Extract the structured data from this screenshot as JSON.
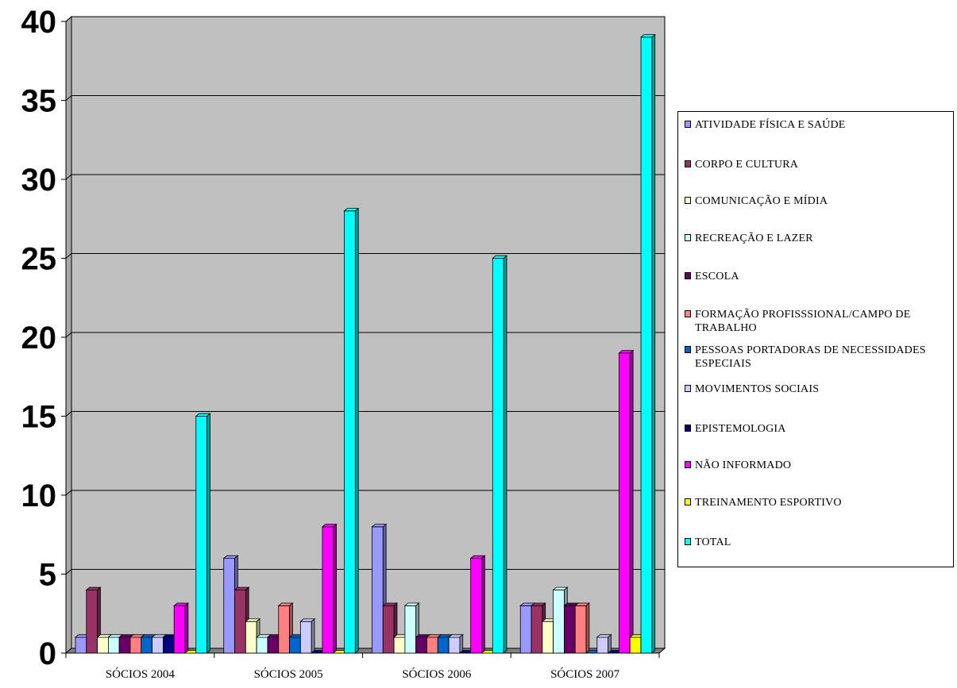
{
  "chart_data": {
    "type": "bar",
    "title": "",
    "xlabel": "",
    "ylabel": "",
    "ylim": [
      0,
      40
    ],
    "yticks": [
      0,
      5,
      10,
      15,
      20,
      25,
      30,
      35,
      40
    ],
    "grid": true,
    "legend_position": "right",
    "plot_background": "#C0C0C0",
    "categories": [
      "SÓCIOS 2004",
      "SÓCIOS 2005",
      "SÓCIOS 2006",
      "SÓCIOS 2007"
    ],
    "series": [
      {
        "name": "ATIVIDADE FÍSICA E SAÚDE",
        "color": "#9999FF",
        "values": [
          1,
          6,
          8,
          3
        ]
      },
      {
        "name": "CORPO E CULTURA",
        "color": "#993366",
        "values": [
          4,
          4,
          3,
          3
        ]
      },
      {
        "name": "COMUNICAÇÃO E MÍDIA",
        "color": "#FFFFCC",
        "values": [
          1,
          2,
          1,
          2
        ]
      },
      {
        "name": "RECREAÇÃO E LAZER",
        "color": "#CCFFFF",
        "values": [
          1,
          1,
          3,
          4
        ]
      },
      {
        "name": "ESCOLA",
        "color": "#660066",
        "values": [
          1,
          1,
          1,
          3
        ]
      },
      {
        "name": "FORMAÇÃO PROFISSSIONAL/CAMPO DE TRABALHO",
        "color": "#FF8080",
        "values": [
          1,
          3,
          1,
          3
        ]
      },
      {
        "name": "PESSOAS PORTADORAS DE NECESSIDADES ESPECIAIS",
        "color": "#0066CC",
        "values": [
          1,
          1,
          1,
          0
        ]
      },
      {
        "name": "MOVIMENTOS SOCIAIS",
        "color": "#CCCCFF",
        "values": [
          1,
          2,
          1,
          1
        ]
      },
      {
        "name": "EPISTEMOLOGIA",
        "color": "#000080",
        "values": [
          1,
          0,
          0,
          0
        ]
      },
      {
        "name": "NÃO INFORMADO",
        "color": "#FF00FF",
        "values": [
          3,
          8,
          6,
          19
        ]
      },
      {
        "name": "TREINAMENTO ESPORTIVO",
        "color": "#FFFF00",
        "values": [
          0,
          0,
          0,
          1
        ]
      },
      {
        "name": "TOTAL",
        "color": "#00FFFF",
        "values": [
          15,
          28,
          25,
          39
        ]
      }
    ]
  }
}
